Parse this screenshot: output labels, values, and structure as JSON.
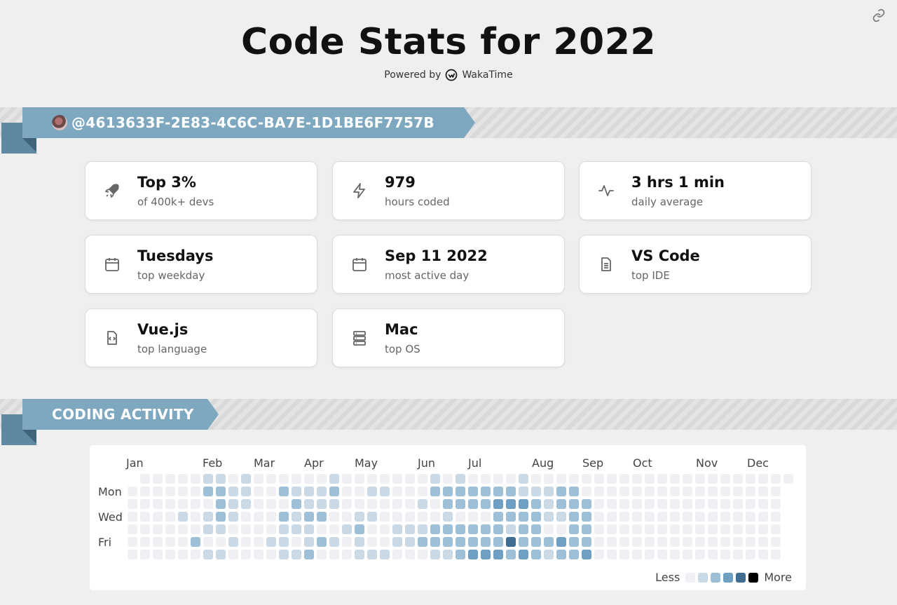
{
  "page": {
    "title": "Code Stats for 2022",
    "powered_by": "Powered by",
    "brand": "WakaTime"
  },
  "profile": {
    "username": "@4613633F-2E83-4C6C-BA7E-1D1BE6F7757B"
  },
  "stats": [
    {
      "value": "Top 3%",
      "label": "of 400k+ devs",
      "icon": "rocket-icon"
    },
    {
      "value": "979",
      "label": "hours coded",
      "icon": "lightning-icon"
    },
    {
      "value": "3 hrs 1 min",
      "label": "daily average",
      "icon": "activity-icon"
    },
    {
      "value": "Tuesdays",
      "label": "top weekday",
      "icon": "calendar-icon"
    },
    {
      "value": "Sep 11 2022",
      "label": "most active day",
      "icon": "calendar-icon"
    },
    {
      "value": "VS Code",
      "label": "top IDE",
      "icon": "document-icon"
    },
    {
      "value": "Vue.js",
      "label": "top language",
      "icon": "code-file-icon"
    },
    {
      "value": "Mac",
      "label": "top OS",
      "icon": "server-icon"
    }
  ],
  "activity": {
    "heading": "CODING ACTIVITY",
    "months": [
      "Jan",
      "Feb",
      "Mar",
      "Apr",
      "May",
      "Jun",
      "Jul",
      "Aug",
      "Sep",
      "Oct",
      "Nov",
      "Dec"
    ],
    "day_labels": [
      "Mon",
      "Wed",
      "Fri"
    ],
    "legend_less": "Less",
    "legend_more": "More",
    "palette": [
      "#efeff4",
      "#c9d9e6",
      "#9dc0d8",
      "#6f9fc2",
      "#3e6d91",
      "#000000"
    ],
    "levels": [
      "-0000011010000001000000010100001000000000000000000000",
      "0000002211002111200110002222222111220",
      "0000000211000211100000010222233321222",
      "0000101210002122001100000100022221122",
      "0000001100001110012001112222221220022",
      "0000020010011012101001122222224222322",
      "0000001100001120001110001123332321223",
      "0000000000000000000000000000000000000"
    ]
  }
}
